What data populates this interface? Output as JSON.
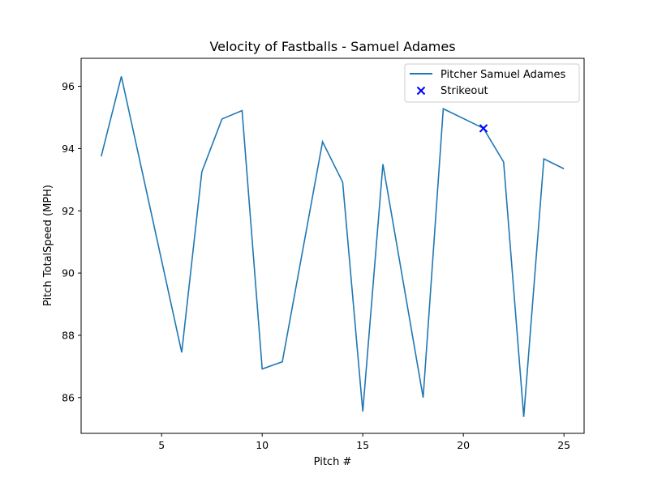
{
  "chart_data": {
    "type": "line",
    "title": "Velocity of Fastballs - Samuel Adames",
    "xlabel": "Pitch #",
    "ylabel": "Pitch TotalSpeed (MPH)",
    "xlim": [
      1,
      26
    ],
    "ylim": [
      84.85,
      96.9
    ],
    "xticks": [
      5,
      10,
      15,
      20,
      25
    ],
    "yticks": [
      86,
      88,
      90,
      92,
      94,
      96
    ],
    "grid": false,
    "legend_position": "top-right",
    "series": [
      {
        "name": "Pitcher Samuel Adames",
        "color": "#1f77b4",
        "x": [
          2,
          3,
          6,
          7,
          8,
          9,
          10,
          11,
          13,
          14,
          15,
          16,
          18,
          19,
          21,
          22,
          23,
          24,
          25
        ],
        "y": [
          93.75,
          96.32,
          87.45,
          93.25,
          94.95,
          95.22,
          86.92,
          87.15,
          94.22,
          92.92,
          85.55,
          93.5,
          86.0,
          95.28,
          94.65,
          93.57,
          85.38,
          93.67,
          93.35
        ]
      }
    ],
    "markers": [
      {
        "name": "Strikeout",
        "color": "#0000ff",
        "marker": "x",
        "x": [
          21
        ],
        "y": [
          94.65
        ]
      }
    ]
  }
}
